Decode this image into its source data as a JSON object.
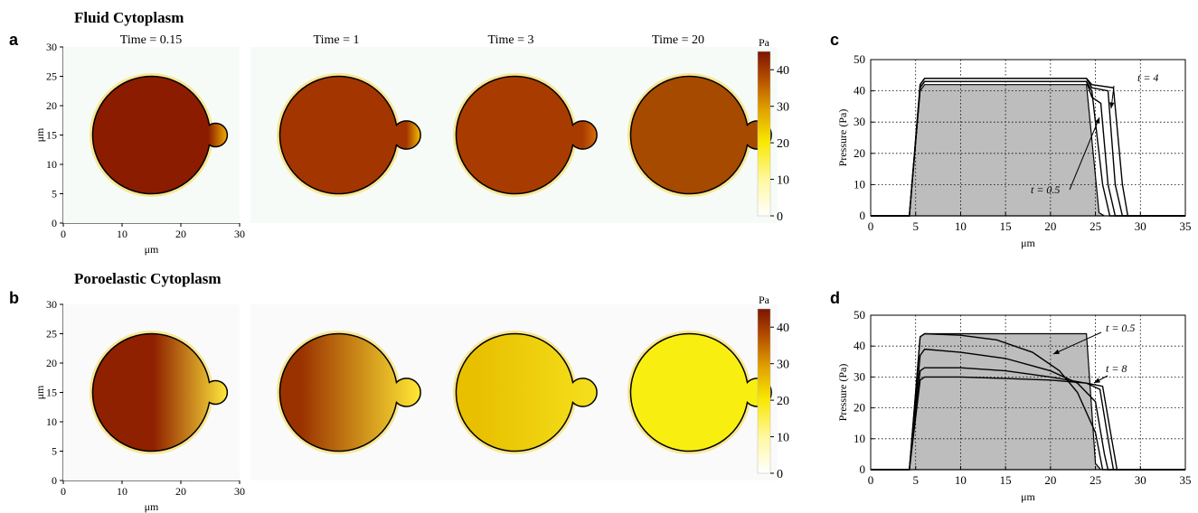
{
  "figure": {
    "row_a": {
      "title": "Fluid Cytoplasm",
      "panel_letter": "a",
      "time_labels": [
        "Time = 0.15",
        "Time = 1",
        "Time = 3",
        "Time = 20"
      ],
      "ylabel": "μm",
      "xlabel": "μm",
      "xticks": [
        "0",
        "10",
        "20",
        "30"
      ],
      "yticks": [
        "0",
        "5",
        "10",
        "15",
        "20",
        "25",
        "30"
      ],
      "colorbar": {
        "unit": "Pa",
        "ticks": [
          "0",
          "10",
          "20",
          "30",
          "40"
        ],
        "range": [
          0,
          45
        ]
      },
      "cell_colors": [
        "#8c1c00",
        "#a33500",
        "#a83c00",
        "#a64a00"
      ],
      "bleb_colors": [
        "#f0b000",
        "#f5c000",
        "#d8700a",
        "#b75200"
      ]
    },
    "row_b": {
      "title": "Poroelastic Cytoplasm",
      "panel_letter": "b",
      "ylabel": "μm",
      "xlabel": "μm",
      "xticks": [
        "0",
        "10",
        "20",
        "30"
      ],
      "yticks": [
        "0",
        "5",
        "10",
        "15",
        "20",
        "25",
        "30"
      ],
      "colorbar": {
        "unit": "Pa",
        "ticks": [
          "0",
          "10",
          "20",
          "30",
          "40"
        ],
        "range": [
          0,
          45
        ]
      },
      "cell_colors_left": [
        "#8f2000",
        "#9a3200",
        "#e8c000",
        "#f8ef10"
      ],
      "cell_colors_right": [
        "#ffe83a",
        "#ffe834",
        "#f5e01c",
        "#f8ef10"
      ]
    }
  },
  "chart_data": [
    {
      "panel": "c",
      "type": "line",
      "xlabel": "μm",
      "ylabel": "Pressure (Pa)",
      "xlim": [
        0,
        35
      ],
      "ylim": [
        0,
        50
      ],
      "xticks": [
        "0",
        "5",
        "10",
        "15",
        "20",
        "25",
        "30",
        "35"
      ],
      "yticks": [
        "0",
        "10",
        "20",
        "30",
        "40",
        "50"
      ],
      "grid": true,
      "annotations": [
        "t = 4",
        "t = 0.5"
      ],
      "series": [
        {
          "x": [
            0,
            4.3,
            5.5,
            6,
            24,
            25.4,
            26,
            35
          ],
          "y": [
            0,
            0,
            40,
            42,
            42,
            1,
            0,
            0
          ],
          "fill": true
        },
        {
          "x": [
            0,
            4.3,
            5.5,
            6,
            24,
            24.6,
            25.8,
            26.6,
            35
          ],
          "y": [
            0,
            0,
            41,
            43,
            43,
            40,
            10,
            0,
            0
          ]
        },
        {
          "x": [
            0,
            4.3,
            5.5,
            6,
            24,
            24.6,
            25.6,
            26.4,
            27.2,
            35
          ],
          "y": [
            0,
            0,
            41,
            43,
            43,
            38,
            36,
            10,
            0,
            0
          ]
        },
        {
          "x": [
            0,
            4.3,
            5.5,
            6,
            24,
            24.6,
            26.4,
            27.2,
            28,
            35
          ],
          "y": [
            0,
            0,
            42,
            44,
            44,
            41,
            40,
            10,
            0,
            0
          ]
        },
        {
          "x": [
            0,
            4.3,
            5.5,
            6,
            24,
            24.6,
            27,
            28,
            28.6,
            35
          ],
          "y": [
            0,
            0,
            42,
            44,
            44,
            42,
            41,
            10,
            0,
            0
          ]
        }
      ]
    },
    {
      "panel": "d",
      "type": "line",
      "xlabel": "μm",
      "ylabel": "Pressure (Pa)",
      "xlim": [
        0,
        35
      ],
      "ylim": [
        0,
        50
      ],
      "xticks": [
        "0",
        "5",
        "10",
        "15",
        "20",
        "25",
        "30",
        "35"
      ],
      "yticks": [
        "0",
        "10",
        "20",
        "30",
        "40",
        "50"
      ],
      "grid": true,
      "annotations": [
        "t = 0.5",
        "t = 8"
      ],
      "series": [
        {
          "x": [
            0,
            4.3,
            5.5,
            6,
            24,
            25,
            25.6,
            35
          ],
          "y": [
            0,
            0,
            43,
            44,
            44,
            2,
            0,
            0
          ],
          "fill": true
        },
        {
          "x": [
            0,
            4.3,
            5.5,
            6,
            10,
            14,
            18,
            21,
            23,
            25,
            25.8,
            35
          ],
          "y": [
            0,
            0,
            43,
            44,
            43.5,
            42,
            38,
            32,
            25,
            12,
            0,
            0
          ]
        },
        {
          "x": [
            0,
            4.3,
            5.5,
            6,
            10,
            15,
            20,
            23,
            25,
            26,
            26.4,
            35
          ],
          "y": [
            0,
            0,
            37,
            39,
            38,
            36,
            32,
            28,
            22,
            5,
            0,
            0
          ]
        },
        {
          "x": [
            0,
            4.3,
            5.5,
            6,
            10,
            15,
            20,
            24,
            25.5,
            26.4,
            27,
            35
          ],
          "y": [
            0,
            0,
            32,
            33,
            33,
            32,
            30,
            28,
            26,
            10,
            0,
            0
          ]
        },
        {
          "x": [
            0,
            4.3,
            5.5,
            6,
            10,
            15,
            20,
            24,
            25.8,
            26.8,
            27.4,
            35
          ],
          "y": [
            0,
            0,
            29,
            30,
            30,
            29.5,
            29,
            28,
            27,
            10,
            0,
            0
          ]
        }
      ]
    }
  ]
}
